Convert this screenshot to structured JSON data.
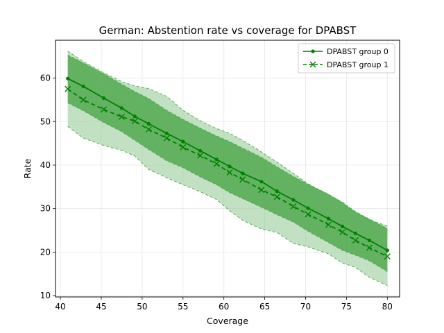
{
  "chart_data": {
    "type": "line",
    "title": "German: Abstention rate vs coverage for DPABST",
    "xlabel": "Coverage",
    "ylabel": "Rate",
    "xlim": [
      39.4,
      81.5
    ],
    "ylim": [
      9.7,
      68.7
    ],
    "xticks": [
      40,
      45,
      50,
      55,
      60,
      65,
      70,
      75,
      80
    ],
    "yticks": [
      10,
      20,
      30,
      40,
      50,
      60
    ],
    "grid": true,
    "legend_position": "top-right",
    "colors": {
      "line": "#008000",
      "band_group0": "#4aa64a",
      "band_group1": "#9acd9a"
    },
    "x": [
      40.9,
      42.8,
      45.3,
      47.5,
      49.1,
      50.8,
      53.0,
      55.0,
      57.1,
      59.1,
      60.7,
      62.3,
      64.6,
      66.5,
      68.5,
      70.3,
      72.8,
      74.5,
      76.1,
      77.8,
      80.0
    ],
    "series": [
      {
        "name": "DPABST group 0",
        "marker": "dot",
        "linestyle": "solid",
        "values": [
          59.9,
          58.1,
          55.4,
          53.1,
          51.2,
          49.5,
          47.3,
          45.4,
          43.3,
          41.3,
          39.7,
          38.1,
          36.2,
          34.0,
          32.0,
          30.1,
          27.7,
          25.9,
          24.3,
          22.7,
          20.4
        ],
        "band_upper": [
          65.3,
          63.5,
          61.0,
          58.6,
          56.9,
          55.3,
          52.6,
          50.5,
          48.5,
          46.7,
          45.4,
          43.9,
          41.8,
          39.6,
          37.4,
          35.6,
          33.3,
          31.4,
          29.3,
          27.6,
          25.4
        ],
        "band_lower": [
          54.3,
          52.5,
          49.8,
          47.7,
          45.7,
          43.6,
          41.0,
          39.4,
          37.3,
          35.5,
          33.7,
          32.3,
          30.3,
          28.6,
          26.9,
          24.8,
          22.2,
          20.4,
          19.3,
          18.0,
          15.5
        ]
      },
      {
        "name": "DPABST group 1",
        "marker": "x",
        "linestyle": "dashed",
        "values": [
          57.5,
          55.0,
          52.8,
          51.1,
          50.1,
          48.2,
          46.2,
          44.1,
          42.2,
          40.3,
          38.3,
          36.7,
          34.3,
          32.7,
          30.5,
          28.7,
          26.3,
          24.6,
          22.7,
          21.0,
          19.0
        ],
        "band_upper": [
          66.2,
          63.8,
          61.2,
          59.2,
          58.2,
          57.6,
          55.8,
          52.6,
          50.2,
          48.4,
          47.3,
          45.7,
          43.0,
          40.7,
          38.1,
          35.7,
          33.2,
          31.5,
          29.0,
          27.4,
          26.0
        ],
        "band_lower": [
          48.9,
          46.2,
          44.5,
          43.4,
          42.1,
          39.0,
          37.1,
          35.5,
          33.9,
          32.1,
          29.5,
          27.3,
          25.3,
          24.5,
          22.0,
          21.2,
          19.6,
          17.5,
          16.5,
          14.2,
          12.3
        ]
      }
    ]
  }
}
